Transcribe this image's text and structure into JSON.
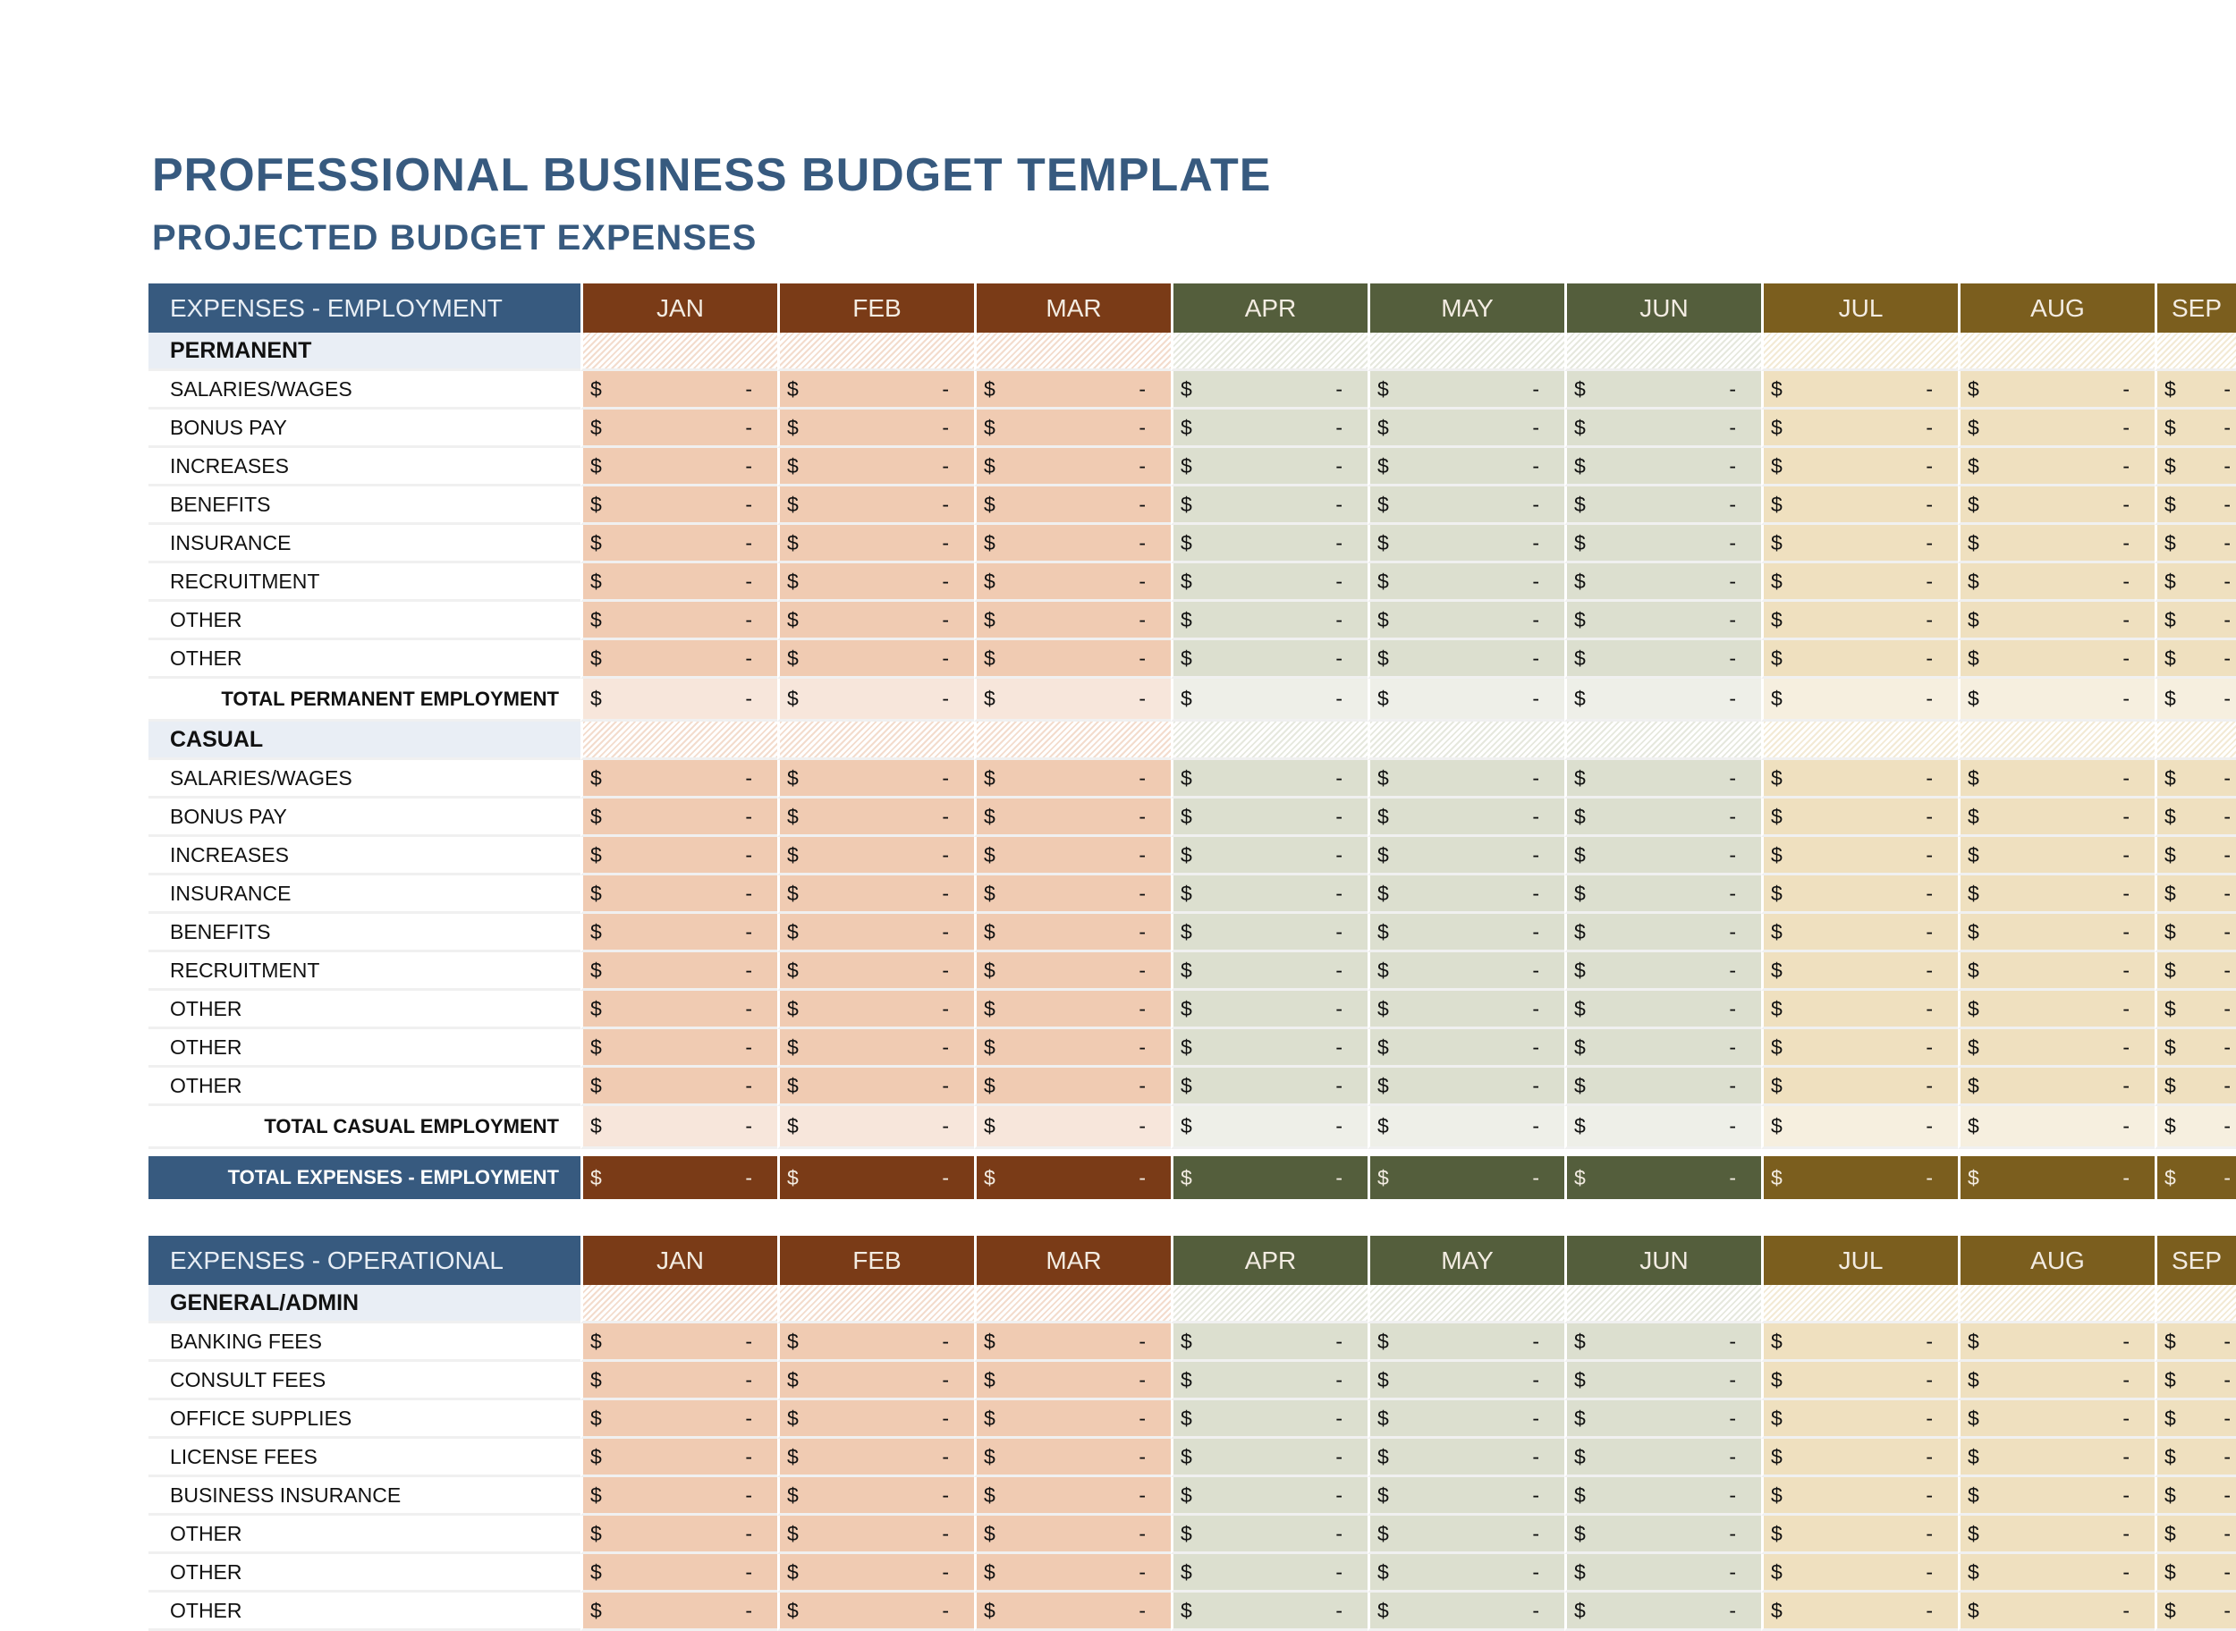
{
  "title": "PROFESSIONAL BUSINESS BUDGET TEMPLATE",
  "subtitle": "PROJECTED BUDGET EXPENSES",
  "months": [
    "JAN",
    "FEB",
    "MAR",
    "APR",
    "MAY",
    "JUN",
    "JUL",
    "AUG",
    "SEP"
  ],
  "currency_symbol": "$",
  "empty_value": "-",
  "colors": {
    "label_header": "#375a7f",
    "quarter_header": [
      "#7a3b17",
      "#545e3c",
      "#7b5e1e"
    ],
    "quarter_fill": [
      "#f0cbb2",
      "#dcdfcf",
      "#efe0bf"
    ],
    "quarter_total_fill": [
      "#f7e6db",
      "#eeefe8",
      "#f6efdf"
    ],
    "quarter_hatch": [
      "#f3dccd",
      "#e6e8de",
      "#f3ead5"
    ],
    "section_label_bg": "#e9eef5"
  },
  "tables": [
    {
      "header": "EXPENSES - EMPLOYMENT",
      "groups": [
        {
          "name": "PERMANENT",
          "items": [
            "SALARIES/WAGES",
            "BONUS PAY",
            "INCREASES",
            "BENEFITS",
            "INSURANCE",
            "RECRUITMENT",
            "OTHER",
            "OTHER"
          ],
          "total": "TOTAL PERMANENT EMPLOYMENT"
        },
        {
          "name": "CASUAL",
          "items": [
            "SALARIES/WAGES",
            "BONUS PAY",
            "INCREASES",
            "INSURANCE",
            "BENEFITS",
            "RECRUITMENT",
            "OTHER",
            "OTHER",
            "OTHER"
          ],
          "total": "TOTAL CASUAL EMPLOYMENT"
        }
      ],
      "grand_total": "TOTAL EXPENSES - EMPLOYMENT"
    },
    {
      "header": "EXPENSES - OPERATIONAL",
      "groups": [
        {
          "name": "GENERAL/ADMIN",
          "items": [
            "BANKING FEES",
            "CONSULT FEES",
            "OFFICE SUPPLIES",
            "LICENSE FEES",
            "BUSINESS INSURANCE",
            "OTHER",
            "OTHER",
            "OTHER"
          ]
        }
      ]
    }
  ]
}
